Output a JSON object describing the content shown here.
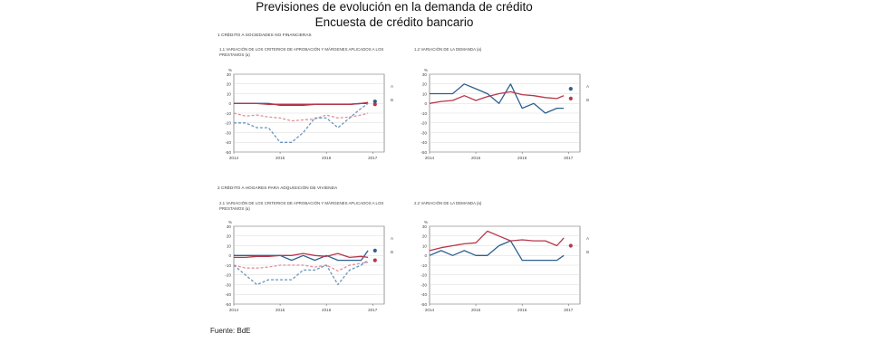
{
  "header": {
    "title": "Previsiones de evolución en la demanda de crédito",
    "subtitle": "Encuesta de crédito bancario"
  },
  "sections": [
    {
      "label": "1  CRÉDITO A SOCIEDADES NO FINANCIERAS"
    },
    {
      "label": "2  CRÉDITO A HOGARES PARA ADQUISICIÓN DE VIVIENDA"
    }
  ],
  "footer": {
    "source": "Fuente: BdE"
  },
  "colors": {
    "blue": "#2e5f8f",
    "red": "#b5374a",
    "pink": "#e08f9a",
    "lightblue": "#6a94bd"
  },
  "chart_data": [
    {
      "type": "line",
      "panel_title": "1.1  VARIACIÓN DE LOS CRITERIOS DE APROBACIÓN Y MÁRGENES APLICADOS A LOS PRESTAMOS (a)",
      "unit": "%",
      "xticks": [
        "2014",
        "2015",
        "2016",
        "2017"
      ],
      "xlim": [
        2014,
        2017.25
      ],
      "ylim": [
        -50,
        30
      ],
      "yticks": [
        30,
        20,
        10,
        0,
        -10,
        -20,
        -30,
        -40,
        -50
      ],
      "marker_labels": [
        "A",
        "B"
      ],
      "series": [
        {
          "style": "solid",
          "color": "blue",
          "x": [
            2014.0,
            2014.25,
            2014.5,
            2014.75,
            2015.0,
            2015.25,
            2015.5,
            2015.75,
            2016.0,
            2016.25,
            2016.5,
            2016.75,
            2016.9
          ],
          "y": [
            0,
            0,
            0,
            0,
            -2,
            -2,
            -2,
            -1,
            -1,
            -1,
            -1,
            0,
            0
          ]
        },
        {
          "style": "solid",
          "color": "red",
          "x": [
            2014.0,
            2014.25,
            2014.5,
            2014.75,
            2015.0,
            2015.25,
            2015.5,
            2015.75,
            2016.0,
            2016.25,
            2016.5,
            2016.75,
            2016.9
          ],
          "y": [
            0,
            0,
            0,
            -1,
            -1,
            -1,
            -1,
            -1,
            -1,
            -1,
            -1,
            0,
            1
          ]
        },
        {
          "style": "dashed",
          "color": "pink",
          "x": [
            2014.0,
            2014.25,
            2014.5,
            2014.75,
            2015.0,
            2015.25,
            2015.5,
            2015.75,
            2016.0,
            2016.25,
            2016.5,
            2016.75,
            2016.9
          ],
          "y": [
            -10,
            -13,
            -12,
            -14,
            -15,
            -18,
            -17,
            -16,
            -12,
            -15,
            -14,
            -12,
            -10
          ]
        },
        {
          "style": "dashed",
          "color": "lightblue",
          "x": [
            2014.0,
            2014.25,
            2014.5,
            2014.75,
            2015.0,
            2015.25,
            2015.5,
            2015.75,
            2016.0,
            2016.25,
            2016.5,
            2016.75,
            2016.9
          ],
          "y": [
            -20,
            -20,
            -25,
            -25,
            -40,
            -40,
            -30,
            -15,
            -15,
            -25,
            -15,
            -5,
            0
          ]
        }
      ],
      "points": [
        {
          "color": "blue",
          "x": 2017.05,
          "y": 2
        },
        {
          "color": "red",
          "x": 2017.05,
          "y": -1
        }
      ]
    },
    {
      "type": "line",
      "panel_title": "1.2  VARIACIÓN DE LA DEMANDA (a)",
      "unit": "%",
      "xticks": [
        "2014",
        "2015",
        "2016",
        "2017"
      ],
      "xlim": [
        2014,
        2017.25
      ],
      "ylim": [
        -50,
        30
      ],
      "yticks": [
        30,
        20,
        10,
        0,
        -10,
        -20,
        -30,
        -40,
        -50
      ],
      "marker_labels": [
        "A",
        "B"
      ],
      "series": [
        {
          "style": "solid",
          "color": "blue",
          "x": [
            2014.0,
            2014.25,
            2014.5,
            2014.75,
            2015.0,
            2015.25,
            2015.5,
            2015.75,
            2016.0,
            2016.25,
            2016.5,
            2016.75,
            2016.9
          ],
          "y": [
            10,
            10,
            10,
            20,
            15,
            10,
            0,
            20,
            -5,
            0,
            -10,
            -5,
            -5
          ]
        },
        {
          "style": "solid",
          "color": "red",
          "x": [
            2014.0,
            2014.25,
            2014.5,
            2014.75,
            2015.0,
            2015.25,
            2015.5,
            2015.75,
            2016.0,
            2016.25,
            2016.5,
            2016.75,
            2016.9
          ],
          "y": [
            0,
            2,
            3,
            8,
            3,
            7,
            10,
            12,
            9,
            8,
            6,
            5,
            8
          ]
        }
      ],
      "points": [
        {
          "color": "blue",
          "x": 2017.05,
          "y": 15
        },
        {
          "color": "red",
          "x": 2017.05,
          "y": 5
        }
      ]
    },
    {
      "type": "line",
      "panel_title": "2.1  VARIACIÓN DE LOS CRITERIOS DE APROBACIÓN Y MÁRGENES APLICADOS A LOS PRESTAMOS (a)",
      "unit": "%",
      "xticks": [
        "2014",
        "2015",
        "2016",
        "2017"
      ],
      "xlim": [
        2014,
        2017.25
      ],
      "ylim": [
        -50,
        30
      ],
      "yticks": [
        30,
        20,
        10,
        0,
        -10,
        -20,
        -30,
        -40,
        -50
      ],
      "marker_labels": [
        "A",
        "B"
      ],
      "series": [
        {
          "style": "solid",
          "color": "blue",
          "x": [
            2014.0,
            2014.25,
            2014.5,
            2014.75,
            2015.0,
            2015.25,
            2015.5,
            2015.75,
            2016.0,
            2016.25,
            2016.5,
            2016.75,
            2016.9
          ],
          "y": [
            0,
            0,
            0,
            0,
            0,
            -5,
            0,
            -5,
            0,
            -5,
            -5,
            -5,
            5
          ]
        },
        {
          "style": "solid",
          "color": "red",
          "x": [
            2014.0,
            2014.25,
            2014.5,
            2014.75,
            2015.0,
            2015.25,
            2015.5,
            2015.75,
            2016.0,
            2016.25,
            2016.5,
            2016.75,
            2016.9
          ],
          "y": [
            -2,
            -2,
            -1,
            -1,
            0,
            0,
            2,
            0,
            -1,
            2,
            -2,
            -1,
            -2
          ]
        },
        {
          "style": "dashed",
          "color": "pink",
          "x": [
            2014.0,
            2014.25,
            2014.5,
            2014.75,
            2015.0,
            2015.25,
            2015.5,
            2015.75,
            2016.0,
            2016.25,
            2016.5,
            2016.75,
            2016.9
          ],
          "y": [
            -10,
            -13,
            -13,
            -12,
            -10,
            -10,
            -10,
            -12,
            -10,
            -16,
            -10,
            -8,
            -7
          ]
        },
        {
          "style": "dashed",
          "color": "lightblue",
          "x": [
            2014.0,
            2014.25,
            2014.5,
            2014.75,
            2015.0,
            2015.25,
            2015.5,
            2015.75,
            2016.0,
            2016.25,
            2016.5,
            2016.75,
            2016.9
          ],
          "y": [
            -10,
            -20,
            -30,
            -25,
            -25,
            -25,
            -15,
            -15,
            -10,
            -30,
            -15,
            -10,
            -5
          ]
        }
      ],
      "points": [
        {
          "color": "blue",
          "x": 2017.05,
          "y": 5
        },
        {
          "color": "red",
          "x": 2017.05,
          "y": -5
        }
      ]
    },
    {
      "type": "line",
      "panel_title": "2.2  VARIACIÓN DE LA DEMANDA (a)",
      "unit": "%",
      "xticks": [
        "2014",
        "2015",
        "2016",
        "2017"
      ],
      "xlim": [
        2014,
        2017.25
      ],
      "ylim": [
        -50,
        30
      ],
      "yticks": [
        30,
        20,
        10,
        0,
        -10,
        -20,
        -30,
        -40,
        -50
      ],
      "marker_labels": [
        "A",
        "B"
      ],
      "series": [
        {
          "style": "solid",
          "color": "blue",
          "x": [
            2014.0,
            2014.25,
            2014.5,
            2014.75,
            2015.0,
            2015.25,
            2015.5,
            2015.75,
            2016.0,
            2016.25,
            2016.5,
            2016.75,
            2016.9
          ],
          "y": [
            0,
            5,
            0,
            5,
            0,
            0,
            10,
            15,
            -5,
            -5,
            -5,
            -5,
            0
          ]
        },
        {
          "style": "solid",
          "color": "red",
          "x": [
            2014.0,
            2014.25,
            2014.5,
            2014.75,
            2015.0,
            2015.25,
            2015.5,
            2015.75,
            2016.0,
            2016.25,
            2016.5,
            2016.75,
            2016.9
          ],
          "y": [
            5,
            8,
            10,
            12,
            13,
            25,
            20,
            15,
            16,
            15,
            15,
            10,
            18
          ]
        }
      ],
      "points": [
        {
          "color": "red",
          "x": 2017.05,
          "y": 10
        }
      ]
    }
  ]
}
